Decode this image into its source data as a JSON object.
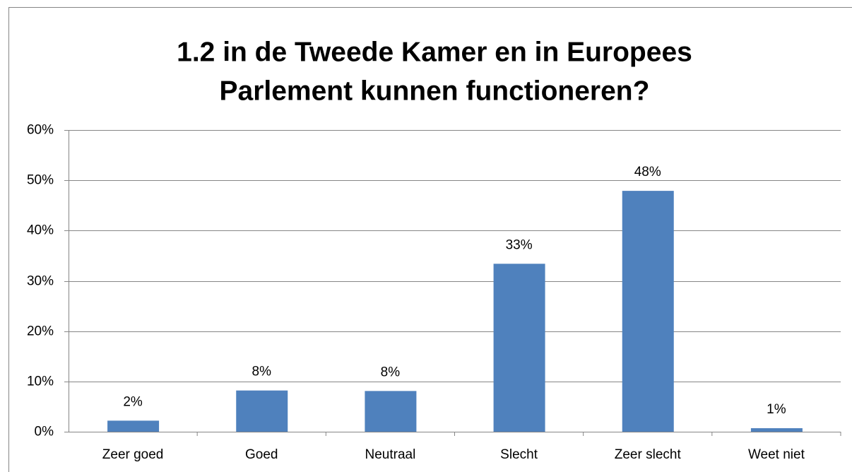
{
  "chart_data": {
    "type": "bar",
    "title": [
      "1.2  in de Tweede Kamer en in Europees",
      "Parlement kunnen functioneren?"
    ],
    "categories": [
      "Zeer goed",
      "Goed",
      "Neutraal",
      "Slecht",
      "Zeer slecht",
      "Weet niet"
    ],
    "values": [
      2.2,
      8.2,
      8.1,
      33.4,
      47.9,
      0.7
    ],
    "value_labels": [
      "2%",
      "8%",
      "8%",
      "33%",
      "48%",
      "1%"
    ],
    "color": "#4f81bd",
    "ylim": [
      0,
      60
    ],
    "yticks": [
      {
        "value": 0,
        "label": "0%"
      },
      {
        "value": 10,
        "label": "10%"
      },
      {
        "value": 20,
        "label": "20%"
      },
      {
        "value": 30,
        "label": "30%"
      },
      {
        "value": 40,
        "label": "40%"
      },
      {
        "value": 50,
        "label": "50%"
      },
      {
        "value": 60,
        "label": "60%"
      }
    ],
    "grid": true
  }
}
